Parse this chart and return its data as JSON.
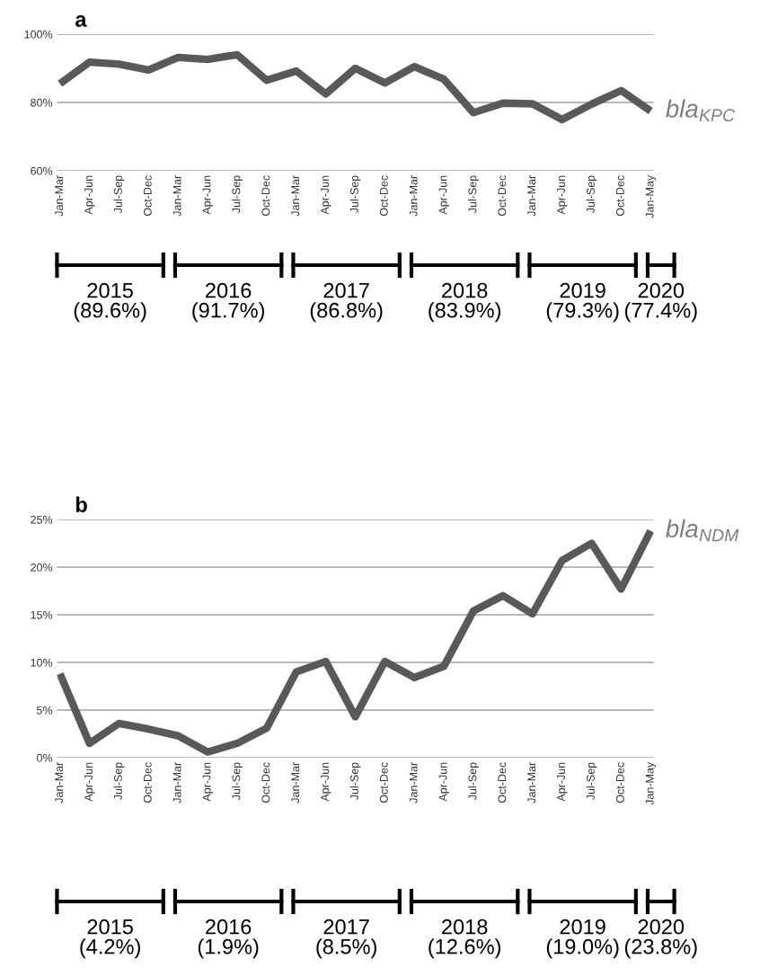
{
  "chart_data": [
    {
      "type": "line",
      "title": "a",
      "categories": [
        "Jan-Mar",
        "Apr-Jun",
        "Jul-Sep",
        "Oct-Dec",
        "Jan-Mar",
        "Apr-Jun",
        "Jul-Sep",
        "Oct-Dec",
        "Jan-Mar",
        "Apr-Jun",
        "Jul-Sep",
        "Oct-Dec",
        "Jan-Mar",
        "Apr-Jun",
        "Jul-Sep",
        "Oct-Dec",
        "Jan-Mar",
        "Apr-Jun",
        "Jul-Sep",
        "Oct-Dec",
        "Jan-May"
      ],
      "series": [
        {
          "name": "bla$_{KPC}$",
          "color": "#595959",
          "values": [
            85.5,
            91.8,
            91.2,
            89.5,
            93.2,
            92.6,
            94,
            86.5,
            89.2,
            82.5,
            90,
            85.7,
            90.5,
            86.8,
            77,
            79.8,
            79.6,
            75,
            79.5,
            83.5,
            77.5
          ]
        }
      ],
      "ylim": [
        60,
        100
      ],
      "yticks": [
        {
          "value": 60,
          "label": "60%"
        },
        {
          "value": 80,
          "label": "80%"
        },
        {
          "value": 100,
          "label": "100%"
        }
      ],
      "grid": "y",
      "annotations": [
        "2015\n(89.6%)",
        "2016\n(91.7%)",
        "2017\n(86.8%)",
        "2018\n(83.9%)",
        "2019\n(79.3%)",
        "2020\n(77.4%)"
      ]
    },
    {
      "type": "line",
      "title": "b",
      "categories": [
        "Jan-Mar",
        "Apr-Jun",
        "Jul-Sep",
        "Oct-Dec",
        "Jan-Mar",
        "Apr-Jun",
        "Jul-Sep",
        "Oct-Dec",
        "Jan-Mar",
        "Apr-Jun",
        "Jul-Sep",
        "Oct-Dec",
        "Jan-Mar",
        "Apr-Jun",
        "Jul-Sep",
        "Oct-Dec",
        "Jan-Mar",
        "Apr-Jun",
        "Jul-Sep",
        "Oct-Dec",
        "Jan-May"
      ],
      "series": [
        {
          "name": "bla$_{NDM}$",
          "color": "#595959",
          "values": [
            8.8,
            1.5,
            3.6,
            3.0,
            2.3,
            0.6,
            1.5,
            3.1,
            9.0,
            10.1,
            4.3,
            10.1,
            8.4,
            9.6,
            15.4,
            17.0,
            15.1,
            20.7,
            22.5,
            17.7,
            23.8
          ]
        }
      ],
      "ylim": [
        0,
        25
      ],
      "yticks": [
        {
          "value": 0,
          "label": "0%"
        },
        {
          "value": 5,
          "label": "5%"
        },
        {
          "value": 10,
          "label": "10%"
        },
        {
          "value": 15,
          "label": "15%"
        },
        {
          "value": 20,
          "label": "20%"
        },
        {
          "value": 25,
          "label": "25%"
        }
      ],
      "grid": "y",
      "annotations": [
        "2015\n(4.2%)",
        "2016\n(1.9%)",
        "2017\n(8.5%)",
        "2018\n(12.6%)",
        "2019\n(19.0%)",
        "2020\n(23.8%)"
      ]
    }
  ]
}
